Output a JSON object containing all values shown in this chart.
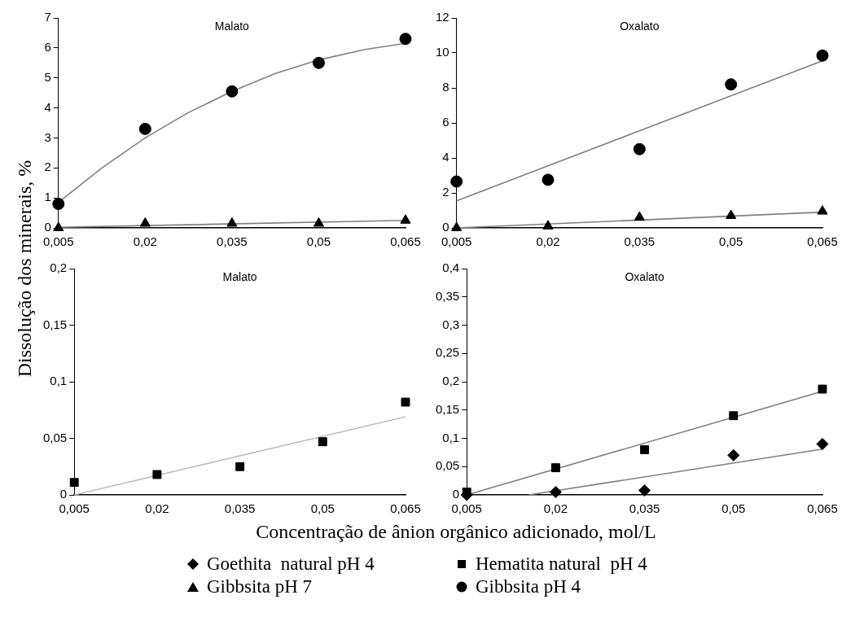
{
  "chart_data": [
    {
      "type": "scatter",
      "title": "Malato",
      "ylabel": "Dissolução dos minerais, %",
      "legend": "bottom",
      "x": [
        0.005,
        0.02,
        0.035,
        0.05,
        0.065
      ],
      "xlim": [
        0.005,
        0.065
      ],
      "xticks": [
        {
          "value": 0.005,
          "label": "0,005"
        },
        {
          "value": 0.02,
          "label": "0,02"
        },
        {
          "value": 0.035,
          "label": "0,035"
        },
        {
          "value": 0.05,
          "label": "0,05"
        },
        {
          "value": 0.065,
          "label": "0,065"
        }
      ],
      "ylim": [
        0,
        7
      ],
      "yticks": [
        0,
        1,
        2,
        3,
        4,
        5,
        6,
        7
      ],
      "series": [
        {
          "name": "Gibbsita pH 7",
          "color": "#000000",
          "marker": "triangle",
          "values": [
            0,
            0.15,
            0.15,
            0.15,
            0.25
          ]
        },
        {
          "name": "Gibbsita pH 4",
          "color": "#000000",
          "marker": "circle",
          "values": [
            0.8,
            3.3,
            4.55,
            5.5,
            6.3
          ]
        },
        {
          "type": "line",
          "color": "#808080",
          "x": [
            0.005,
            0.065
          ],
          "values": [
            0.02,
            0.25
          ]
        },
        {
          "type": "line",
          "color": "#808080",
          "x": [
            0.005,
            0.0125,
            0.02,
            0.0275,
            0.035,
            0.0425,
            0.05,
            0.058,
            0.065
          ],
          "values": [
            0.85,
            2.0,
            3.0,
            3.85,
            4.55,
            5.15,
            5.6,
            5.95,
            6.15
          ]
        }
      ]
    },
    {
      "type": "scatter",
      "title": "Oxalato",
      "x": [
        0.005,
        0.02,
        0.035,
        0.05,
        0.065
      ],
      "xlim": [
        0.005,
        0.065
      ],
      "xticks": [
        {
          "value": 0.005,
          "label": "0,005"
        },
        {
          "value": 0.02,
          "label": "0,02"
        },
        {
          "value": 0.035,
          "label": "0,035"
        },
        {
          "value": 0.05,
          "label": "0,05"
        },
        {
          "value": 0.065,
          "label": "0,065"
        }
      ],
      "ylim": [
        0,
        12
      ],
      "yticks": [
        0,
        2,
        4,
        6,
        8,
        10,
        12
      ],
      "series": [
        {
          "color": "#000000",
          "marker": "triangle",
          "values": [
            0,
            0.1,
            0.6,
            0.7,
            0.95
          ]
        },
        {
          "color": "#000000",
          "marker": "circle",
          "values": [
            2.65,
            2.75,
            4.5,
            8.2,
            9.85
          ]
        },
        {
          "type": "line",
          "color": "#808080",
          "x": [
            0.005,
            0.065
          ],
          "values": [
            0,
            0.9
          ]
        },
        {
          "type": "line",
          "color": "#808080",
          "x": [
            0.005,
            0.065
          ],
          "values": [
            1.55,
            9.55
          ]
        }
      ]
    },
    {
      "type": "scatter",
      "title": "Malato",
      "xlabel": "Concentração de ânion orgânico adicionado, mol/L",
      "x": [
        0.005,
        0.02,
        0.035,
        0.05,
        0.065
      ],
      "xlim": [
        0.005,
        0.065
      ],
      "xticks": [
        {
          "value": 0.005,
          "label": "0,005"
        },
        {
          "value": 0.02,
          "label": "0,02"
        },
        {
          "value": 0.035,
          "label": "0,035"
        },
        {
          "value": 0.05,
          "label": "0,05"
        },
        {
          "value": 0.065,
          "label": "0,065"
        }
      ],
      "ylim": [
        0,
        0.2
      ],
      "yticks": [
        0,
        {
          "value": 0.05,
          "label": "0,05"
        },
        {
          "value": 0.1,
          "label": "0,1"
        },
        {
          "value": 0.15,
          "label": "0,15"
        },
        {
          "value": 0.2,
          "label": "0,2"
        }
      ],
      "series": [
        {
          "color": "#000000",
          "marker": "square",
          "values": [
            0.011,
            0.018,
            0.025,
            0.047,
            0.082
          ]
        },
        {
          "type": "line",
          "color": "#c0c0c0",
          "x": [
            0.005,
            0.065
          ],
          "values": [
            0,
            0.069
          ]
        }
      ]
    },
    {
      "type": "scatter",
      "title": "Oxalato",
      "legend": "bottom",
      "x": [
        0.005,
        0.02,
        0.035,
        0.05,
        0.065
      ],
      "xlim": [
        0.005,
        0.065
      ],
      "xticks": [
        {
          "value": 0.005,
          "label": "0,005"
        },
        {
          "value": 0.02,
          "label": "0,02"
        },
        {
          "value": 0.035,
          "label": "0,035"
        },
        {
          "value": 0.05,
          "label": "0,05"
        },
        {
          "value": 0.065,
          "label": "0,065"
        }
      ],
      "ylim": [
        0,
        0.4
      ],
      "yticks": [
        0,
        {
          "value": 0.05,
          "label": "0,05"
        },
        {
          "value": 0.1,
          "label": "0,1"
        },
        {
          "value": 0.15,
          "label": "0,15"
        },
        {
          "value": 0.2,
          "label": "0,2"
        },
        {
          "value": 0.25,
          "label": "0,25"
        },
        {
          "value": 0.3,
          "label": "0,3"
        },
        {
          "value": 0.35,
          "label": "0,35"
        },
        {
          "value": 0.4,
          "label": "0,4"
        }
      ],
      "series": [
        {
          "name": "Goethita  natural pH 4",
          "color": "#000000",
          "marker": "diamond",
          "values": [
            0,
            0.005,
            0.008,
            0.07,
            0.09
          ]
        },
        {
          "name": "Hematita natural  pH 4",
          "color": "#000000",
          "marker": "square",
          "values": [
            0.005,
            0.048,
            0.08,
            0.14,
            0.187
          ]
        },
        {
          "type": "line",
          "color": "#808080",
          "x": [
            0.0155,
            0.065
          ],
          "values": [
            0,
            0.081
          ]
        },
        {
          "type": "line",
          "color": "#808080",
          "x": [
            0.005,
            0.065
          ],
          "values": [
            0,
            0.183
          ]
        }
      ]
    }
  ]
}
